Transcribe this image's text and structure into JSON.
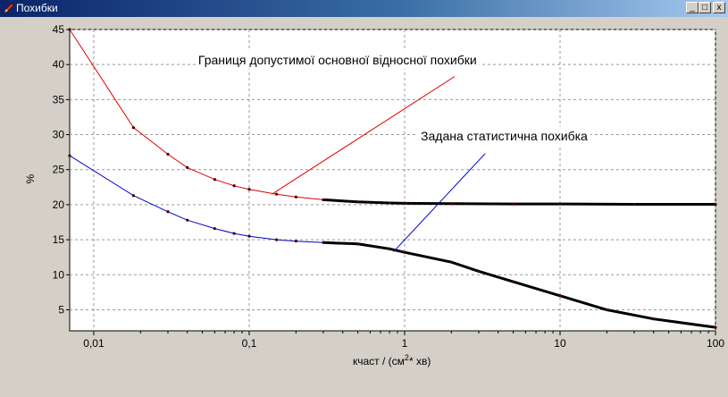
{
  "window": {
    "title": "Похибки",
    "controls": {
      "minimize": "_",
      "maximize": "□",
      "close": "x"
    }
  },
  "chart_data": {
    "type": "line",
    "xscale": "log",
    "xlim": [
      0.007,
      100
    ],
    "ylim": [
      2,
      45
    ],
    "xlabel": "кчаст / (см",
    "xlabel_sup": "2",
    "xlabel_tail": "* хв)",
    "ylabel": "%",
    "xticks": [
      {
        "value": 0.01,
        "label": "0,01"
      },
      {
        "value": 0.1,
        "label": "0,1"
      },
      {
        "value": 1,
        "label": "1"
      },
      {
        "value": 10,
        "label": "10"
      },
      {
        "value": 100,
        "label": "100"
      }
    ],
    "yticks": [
      5,
      10,
      15,
      20,
      25,
      30,
      35,
      40,
      45
    ],
    "grid": true,
    "series": [
      {
        "key": "red",
        "color": "#e00000",
        "points": [
          [
            0.007,
            45
          ],
          [
            0.018,
            31
          ],
          [
            0.03,
            27.2
          ],
          [
            0.04,
            25.3
          ],
          [
            0.06,
            23.6
          ],
          [
            0.08,
            22.7
          ],
          [
            0.1,
            22.2
          ],
          [
            0.15,
            21.5
          ],
          [
            0.2,
            21.1
          ],
          [
            0.3,
            20.7
          ],
          [
            0.5,
            20.4
          ],
          [
            0.8,
            20.25
          ],
          [
            1,
            20.2
          ],
          [
            2,
            20.15
          ],
          [
            5,
            20.1
          ],
          [
            10,
            20.1
          ],
          [
            30,
            20.05
          ],
          [
            100,
            20.05
          ]
        ]
      },
      {
        "key": "blue",
        "color": "#0000cc",
        "points": [
          [
            0.007,
            27
          ],
          [
            0.018,
            21.3
          ],
          [
            0.03,
            19
          ],
          [
            0.04,
            17.8
          ],
          [
            0.06,
            16.6
          ],
          [
            0.08,
            15.9
          ],
          [
            0.1,
            15.5
          ],
          [
            0.15,
            15
          ],
          [
            0.2,
            14.8
          ],
          [
            0.3,
            14.6
          ],
          [
            0.5,
            14.4
          ],
          [
            0.8,
            13.7
          ],
          [
            1,
            13.2
          ],
          [
            2,
            11.8
          ],
          [
            3,
            10.5
          ],
          [
            5,
            9
          ],
          [
            10,
            7
          ],
          [
            20,
            5
          ],
          [
            40,
            3.7
          ],
          [
            100,
            2.5
          ]
        ]
      }
    ],
    "annotations": [
      {
        "key": "red-label",
        "text": "Границя допустимої основної відносної похибки",
        "color": "#e00000",
        "label_at": [
          0.047,
          40
        ],
        "line_from": [
          0.14,
          21.5
        ],
        "line_to": [
          2.1,
          38.3
        ]
      },
      {
        "key": "blue-label",
        "text": "Задана статистична похибка",
        "color": "#0000cc",
        "label_at": [
          1.27,
          29.2
        ],
        "line_from": [
          0.85,
          13.3
        ],
        "line_to": [
          3.3,
          27.3
        ]
      }
    ]
  }
}
